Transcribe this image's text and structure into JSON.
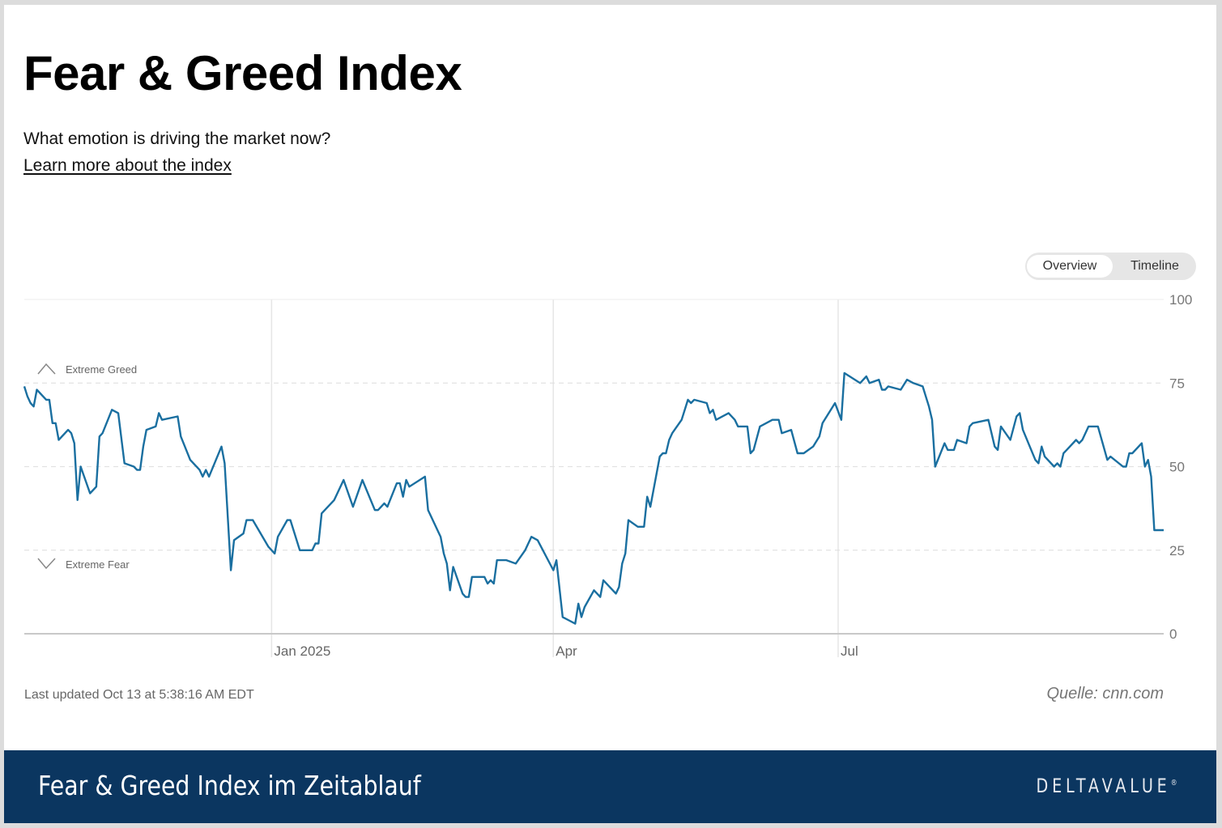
{
  "header": {
    "title": "Fear & Greed Index",
    "subtitle": "What emotion is driving the market now?",
    "learn_more_link": "Learn more about the index"
  },
  "view_toggle": {
    "options": [
      "Overview",
      "Timeline"
    ],
    "selected": "Overview"
  },
  "footer_info": {
    "last_updated": "Last updated Oct 13 at 5:38:16 AM EDT",
    "source": "Quelle: cnn.com"
  },
  "banner": {
    "title": "Fear & Greed Index im Zeitablauf",
    "logo_text": "DELTAVALUE",
    "logo_mark": "®",
    "background": "#0b3660"
  },
  "chart_data": {
    "type": "line",
    "title": "",
    "xlabel": "",
    "ylabel": "",
    "x_range": [
      "2024-10-14",
      "2025-10-13"
    ],
    "ylim": [
      0,
      100
    ],
    "y_ticks": [
      "0",
      "25",
      "50",
      "75",
      "100"
    ],
    "y_tick_values": [
      0,
      25,
      50,
      75,
      100
    ],
    "x_ticks": [
      {
        "date": "2025-01-01",
        "label": "Jan 2025"
      },
      {
        "date": "2025-04-01",
        "label": "Apr"
      },
      {
        "date": "2025-07-01",
        "label": "Jul"
      }
    ],
    "zone_labels": {
      "upper": "Extreme Greed",
      "lower": "Extreme Fear"
    },
    "grid": true,
    "line_color": "#1a6fa0",
    "series": [
      {
        "points": [
          [
            "2024-10-14",
            74
          ],
          [
            "2024-10-15",
            71
          ],
          [
            "2024-10-16",
            69
          ],
          [
            "2024-10-17",
            68
          ],
          [
            "2024-10-18",
            73
          ],
          [
            "2024-10-21",
            70
          ],
          [
            "2024-10-22",
            70
          ],
          [
            "2024-10-23",
            63
          ],
          [
            "2024-10-24",
            63
          ],
          [
            "2024-10-25",
            58
          ],
          [
            "2024-10-28",
            61
          ],
          [
            "2024-10-29",
            60
          ],
          [
            "2024-10-30",
            57
          ],
          [
            "2024-10-31",
            40
          ],
          [
            "2024-11-01",
            50
          ],
          [
            "2024-11-04",
            42
          ],
          [
            "2024-11-06",
            44
          ],
          [
            "2024-11-07",
            59
          ],
          [
            "2024-11-08",
            60
          ],
          [
            "2024-11-11",
            67
          ],
          [
            "2024-11-13",
            66
          ],
          [
            "2024-11-15",
            51
          ],
          [
            "2024-11-18",
            50
          ],
          [
            "2024-11-19",
            49
          ],
          [
            "2024-11-20",
            49
          ],
          [
            "2024-11-21",
            56
          ],
          [
            "2024-11-22",
            61
          ],
          [
            "2024-11-25",
            62
          ],
          [
            "2024-11-26",
            66
          ],
          [
            "2024-11-27",
            64
          ],
          [
            "2024-12-02",
            65
          ],
          [
            "2024-12-03",
            59
          ],
          [
            "2024-12-06",
            52
          ],
          [
            "2024-12-09",
            49
          ],
          [
            "2024-12-10",
            47
          ],
          [
            "2024-12-11",
            49
          ],
          [
            "2024-12-12",
            47
          ],
          [
            "2024-12-16",
            56
          ],
          [
            "2024-12-17",
            51
          ],
          [
            "2024-12-19",
            19
          ],
          [
            "2024-12-20",
            28
          ],
          [
            "2024-12-23",
            30
          ],
          [
            "2024-12-24",
            34
          ],
          [
            "2024-12-26",
            34
          ],
          [
            "2024-12-31",
            26
          ],
          [
            "2025-01-02",
            24
          ],
          [
            "2025-01-03",
            29
          ],
          [
            "2025-01-06",
            34
          ],
          [
            "2025-01-07",
            34
          ],
          [
            "2025-01-10",
            25
          ],
          [
            "2025-01-14",
            25
          ],
          [
            "2025-01-15",
            27
          ],
          [
            "2025-01-16",
            27
          ],
          [
            "2025-01-17",
            36
          ],
          [
            "2025-01-21",
            40
          ],
          [
            "2025-01-24",
            46
          ],
          [
            "2025-01-27",
            38
          ],
          [
            "2025-01-30",
            46
          ],
          [
            "2025-02-03",
            37
          ],
          [
            "2025-02-04",
            37
          ],
          [
            "2025-02-06",
            39
          ],
          [
            "2025-02-07",
            38
          ],
          [
            "2025-02-10",
            45
          ],
          [
            "2025-02-11",
            45
          ],
          [
            "2025-02-12",
            41
          ],
          [
            "2025-02-13",
            46
          ],
          [
            "2025-02-14",
            44
          ],
          [
            "2025-02-19",
            47
          ],
          [
            "2025-02-20",
            37
          ],
          [
            "2025-02-21",
            35
          ],
          [
            "2025-02-24",
            29
          ],
          [
            "2025-02-25",
            24
          ],
          [
            "2025-02-26",
            21
          ],
          [
            "2025-02-27",
            13
          ],
          [
            "2025-02-28",
            20
          ],
          [
            "2025-03-03",
            12
          ],
          [
            "2025-03-04",
            11
          ],
          [
            "2025-03-05",
            11
          ],
          [
            "2025-03-06",
            17
          ],
          [
            "2025-03-07",
            17
          ],
          [
            "2025-03-10",
            17
          ],
          [
            "2025-03-11",
            15
          ],
          [
            "2025-03-12",
            16
          ],
          [
            "2025-03-13",
            15
          ],
          [
            "2025-03-14",
            22
          ],
          [
            "2025-03-17",
            22
          ],
          [
            "2025-03-20",
            21
          ],
          [
            "2025-03-23",
            25
          ],
          [
            "2025-03-25",
            29
          ],
          [
            "2025-03-27",
            28
          ],
          [
            "2025-04-01",
            19
          ],
          [
            "2025-04-02",
            22
          ],
          [
            "2025-04-04",
            5
          ],
          [
            "2025-04-06",
            4
          ],
          [
            "2025-04-08",
            3
          ],
          [
            "2025-04-09",
            9
          ],
          [
            "2025-04-10",
            5
          ],
          [
            "2025-04-11",
            8
          ],
          [
            "2025-04-14",
            13
          ],
          [
            "2025-04-16",
            11
          ],
          [
            "2025-04-17",
            16
          ],
          [
            "2025-04-21",
            12
          ],
          [
            "2025-04-22",
            14
          ],
          [
            "2025-04-23",
            21
          ],
          [
            "2025-04-24",
            24
          ],
          [
            "2025-04-25",
            34
          ],
          [
            "2025-04-28",
            32
          ],
          [
            "2025-04-30",
            32
          ],
          [
            "2025-05-01",
            41
          ],
          [
            "2025-05-02",
            38
          ],
          [
            "2025-05-05",
            53
          ],
          [
            "2025-05-06",
            54
          ],
          [
            "2025-05-07",
            54
          ],
          [
            "2025-05-08",
            58
          ],
          [
            "2025-05-09",
            60
          ],
          [
            "2025-05-12",
            64
          ],
          [
            "2025-05-14",
            70
          ],
          [
            "2025-05-15",
            69
          ],
          [
            "2025-05-16",
            70
          ],
          [
            "2025-05-20",
            69
          ],
          [
            "2025-05-21",
            66
          ],
          [
            "2025-05-22",
            67
          ],
          [
            "2025-05-23",
            64
          ],
          [
            "2025-05-27",
            66
          ],
          [
            "2025-05-29",
            64
          ],
          [
            "2025-05-30",
            62
          ],
          [
            "2025-06-02",
            62
          ],
          [
            "2025-06-03",
            54
          ],
          [
            "2025-06-04",
            55
          ],
          [
            "2025-06-06",
            62
          ],
          [
            "2025-06-10",
            64
          ],
          [
            "2025-06-12",
            64
          ],
          [
            "2025-06-13",
            60
          ],
          [
            "2025-06-16",
            61
          ],
          [
            "2025-06-18",
            54
          ],
          [
            "2025-06-20",
            54
          ],
          [
            "2025-06-23",
            56
          ],
          [
            "2025-06-25",
            59
          ],
          [
            "2025-06-26",
            63
          ],
          [
            "2025-06-30",
            69
          ],
          [
            "2025-07-02",
            64
          ],
          [
            "2025-07-03",
            78
          ],
          [
            "2025-07-08",
            75
          ],
          [
            "2025-07-10",
            77
          ],
          [
            "2025-07-11",
            75
          ],
          [
            "2025-07-14",
            76
          ],
          [
            "2025-07-15",
            73
          ],
          [
            "2025-07-16",
            73
          ],
          [
            "2025-07-17",
            74
          ],
          [
            "2025-07-21",
            73
          ],
          [
            "2025-07-23",
            76
          ],
          [
            "2025-07-25",
            75
          ],
          [
            "2025-07-28",
            74
          ],
          [
            "2025-07-30",
            68
          ],
          [
            "2025-07-31",
            64
          ],
          [
            "2025-08-01",
            50
          ],
          [
            "2025-08-04",
            57
          ],
          [
            "2025-08-05",
            55
          ],
          [
            "2025-08-07",
            55
          ],
          [
            "2025-08-08",
            58
          ],
          [
            "2025-08-11",
            57
          ],
          [
            "2025-08-12",
            62
          ],
          [
            "2025-08-13",
            63
          ],
          [
            "2025-08-18",
            64
          ],
          [
            "2025-08-20",
            56
          ],
          [
            "2025-08-21",
            55
          ],
          [
            "2025-08-22",
            62
          ],
          [
            "2025-08-25",
            58
          ],
          [
            "2025-08-27",
            65
          ],
          [
            "2025-08-28",
            66
          ],
          [
            "2025-08-29",
            61
          ],
          [
            "2025-09-02",
            52
          ],
          [
            "2025-09-03",
            51
          ],
          [
            "2025-09-04",
            56
          ],
          [
            "2025-09-05",
            53
          ],
          [
            "2025-09-08",
            50
          ],
          [
            "2025-09-09",
            51
          ],
          [
            "2025-09-10",
            50
          ],
          [
            "2025-09-11",
            54
          ],
          [
            "2025-09-12",
            55
          ],
          [
            "2025-09-15",
            58
          ],
          [
            "2025-09-16",
            57
          ],
          [
            "2025-09-17",
            58
          ],
          [
            "2025-09-19",
            62
          ],
          [
            "2025-09-22",
            62
          ],
          [
            "2025-09-25",
            52
          ],
          [
            "2025-09-26",
            53
          ],
          [
            "2025-09-30",
            50
          ],
          [
            "2025-10-01",
            50
          ],
          [
            "2025-10-02",
            54
          ],
          [
            "2025-10-03",
            54
          ],
          [
            "2025-10-06",
            57
          ],
          [
            "2025-10-07",
            50
          ],
          [
            "2025-10-08",
            52
          ],
          [
            "2025-10-09",
            47
          ],
          [
            "2025-10-10",
            31
          ],
          [
            "2025-10-13",
            31
          ]
        ]
      }
    ]
  }
}
